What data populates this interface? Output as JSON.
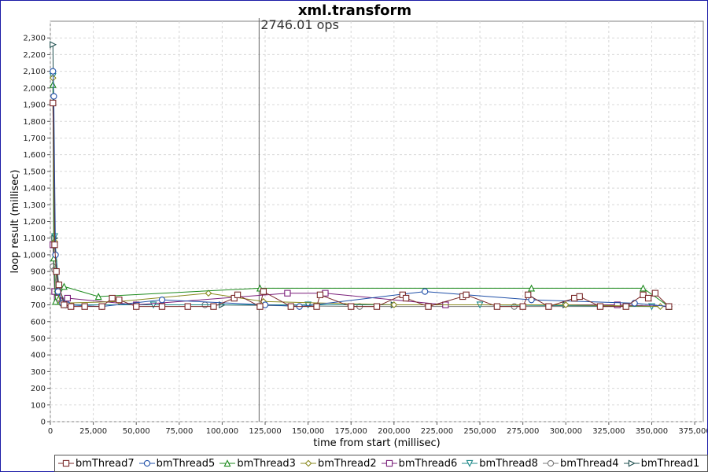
{
  "chart_data": {
    "type": "scatter",
    "title": "xml.transform",
    "annotation": "2746.01 ops",
    "marker_x": 121500,
    "xlabel": "time from start (millisec)",
    "ylabel": "loop result (millisec)",
    "xlim": [
      0,
      380000
    ],
    "ylim": [
      0,
      2400
    ],
    "x_ticks": [
      "0",
      "25,000",
      "50,000",
      "75,000",
      "100,000",
      "125,000",
      "150,000",
      "175,000",
      "200,000",
      "225,000",
      "250,000",
      "275,000",
      "300,000",
      "325,000",
      "350,000",
      "375,000"
    ],
    "y_ticks": [
      "0",
      "100",
      "200",
      "300",
      "400",
      "500",
      "600",
      "700",
      "800",
      "900",
      "1,000",
      "1,100",
      "1,200",
      "1,300",
      "1,400",
      "1,500",
      "1,600",
      "1,700",
      "1,800",
      "1,900",
      "2,000",
      "2,100",
      "2,200",
      "2,300"
    ],
    "grid": true,
    "legend_position": "bottom",
    "series": [
      {
        "name": "bmThread7",
        "color": "#7a2a2a",
        "marker": "square",
        "x": [
          1500,
          2500,
          3500,
          5000,
          8000,
          12000,
          20000,
          30000,
          36000,
          40000,
          50000,
          65000,
          80000,
          95000,
          107000,
          109000,
          122000,
          124000,
          140000,
          155000,
          157000,
          175000,
          190000,
          205000,
          207000,
          220000,
          240000,
          242000,
          260000,
          275000,
          278000,
          290000,
          305000,
          308000,
          320000,
          335000,
          345000,
          348000,
          352000,
          360000
        ],
        "y": [
          1910,
          1060,
          900,
          820,
          700,
          690,
          690,
          690,
          740,
          730,
          690,
          690,
          690,
          690,
          740,
          760,
          690,
          780,
          690,
          690,
          760,
          690,
          690,
          760,
          740,
          690,
          750,
          760,
          690,
          690,
          760,
          690,
          740,
          750,
          690,
          690,
          760,
          740,
          770,
          690
        ]
      },
      {
        "name": "bmThread5",
        "color": "#1f4fa8",
        "marker": "circle",
        "x": [
          1500,
          2000,
          3000,
          4500,
          7000,
          10000,
          30000,
          65000,
          125000,
          145000,
          218000,
          280000,
          340000,
          360000
        ],
        "y": [
          2100,
          1950,
          1000,
          780,
          710,
          700,
          690,
          730,
          700,
          690,
          780,
          730,
          710,
          690
        ]
      },
      {
        "name": "bmThread3",
        "color": "#1d8a1d",
        "marker": "triangle-up",
        "x": [
          1500,
          2000,
          3000,
          8000,
          28000,
          122000,
          280000,
          345000,
          360000
        ],
        "y": [
          2020,
          980,
          720,
          810,
          750,
          800,
          800,
          800,
          690
        ]
      },
      {
        "name": "bmThread2",
        "color": "#8a8a1f",
        "marker": "diamond",
        "x": [
          1500,
          2500,
          4000,
          6000,
          40000,
          92000,
          124000,
          200000,
          300000,
          355000
        ],
        "y": [
          2060,
          1080,
          780,
          710,
          720,
          770,
          720,
          700,
          700,
          690
        ]
      },
      {
        "name": "bmThread6",
        "color": "#7a1f7a",
        "marker": "square",
        "x": [
          1500,
          2500,
          4000,
          10000,
          50000,
          138000,
          160000,
          230000,
          330000,
          360000
        ],
        "y": [
          1060,
          780,
          740,
          740,
          700,
          770,
          770,
          700,
          700,
          690
        ]
      },
      {
        "name": "bmThread8",
        "color": "#1f8a8a",
        "marker": "triangle-down",
        "x": [
          1500,
          2500,
          5000,
          9000,
          60000,
          150000,
          250000,
          350000
        ],
        "y": [
          2070,
          1110,
          800,
          700,
          700,
          700,
          700,
          690
        ]
      },
      {
        "name": "bmThread4",
        "color": "#777777",
        "marker": "circle",
        "x": [
          1500,
          2500,
          4000,
          8000,
          90000,
          180000,
          270000,
          360000
        ],
        "y": [
          930,
          910,
          720,
          700,
          700,
          690,
          690,
          690
        ]
      },
      {
        "name": "bmThread1",
        "color": "#1f4f4f",
        "marker": "triangle-right",
        "x": [
          1500,
          2500,
          4000,
          12000,
          100000,
          200000,
          300000,
          360000
        ],
        "y": [
          2260,
          1100,
          760,
          700,
          700,
          700,
          700,
          690
        ]
      }
    ]
  }
}
